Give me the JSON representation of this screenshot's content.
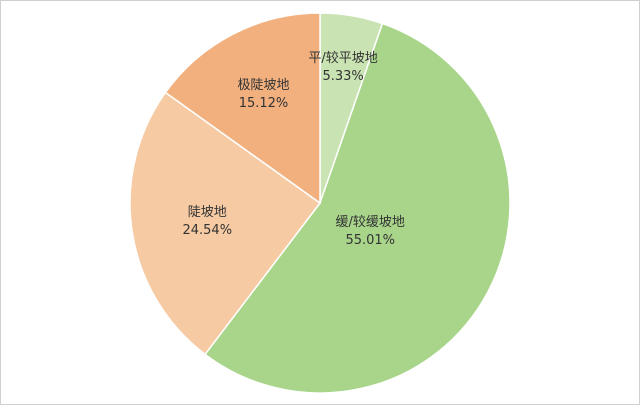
{
  "chart_data": {
    "type": "pie",
    "title": "",
    "slices": [
      {
        "label": "平/较平坡地",
        "value": 5.33,
        "value_label": "5.33%",
        "color": "#c9e3b3"
      },
      {
        "label": "缓/较缓坡地",
        "value": 55.01,
        "value_label": "55.01%",
        "color": "#a8d58a"
      },
      {
        "label": "陡坡地",
        "value": 24.54,
        "value_label": "24.54%",
        "color": "#f6cba4"
      },
      {
        "label": "极陡坡地",
        "value": 15.12,
        "value_label": "15.12%",
        "color": "#f1b07e"
      }
    ],
    "start_angle": "top",
    "direction": "clockwise",
    "legend": "none",
    "border_color": "#ffffff"
  }
}
